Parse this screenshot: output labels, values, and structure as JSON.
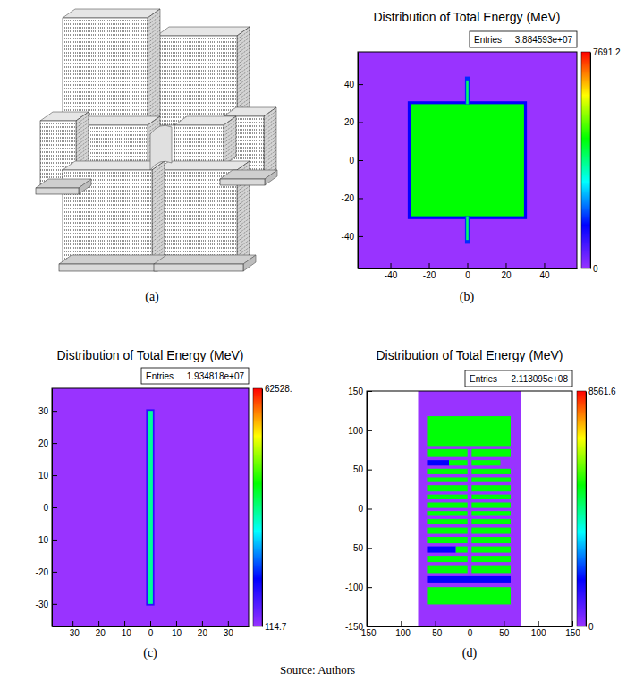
{
  "chart_data": [
    {
      "type": "diagram",
      "panel_label": "(a)"
    },
    {
      "type": "heatmap",
      "panel_label": "(b)",
      "title": "Distribution of Total Energy (MeV)",
      "entries_label": "Entries",
      "entries": "3.884593e+07",
      "xlim": [
        -57,
        57
      ],
      "ylim": [
        -57,
        57
      ],
      "xticks": [
        -40,
        -20,
        0,
        20,
        40
      ],
      "yticks": [
        -40,
        -20,
        0,
        20,
        40
      ],
      "zlim": [
        0,
        7691.2
      ],
      "zticks": [
        0,
        7691.2
      ],
      "cells": [
        {
          "x": [
            -57,
            57
          ],
          "y": [
            -57,
            57
          ],
          "value": 0
        },
        {
          "x": [
            -31,
            31
          ],
          "y": [
            -31,
            31
          ],
          "value": 1500
        },
        {
          "x": [
            -29.5,
            29.5
          ],
          "y": [
            -29.5,
            29.5
          ],
          "value": 4600
        },
        {
          "x": [
            -1.2,
            1.2
          ],
          "y": [
            29.5,
            44
          ],
          "value": 1800
        },
        {
          "x": [
            -0.6,
            0.6
          ],
          "y": [
            29.5,
            42
          ],
          "value": 4000
        },
        {
          "x": [
            -1.2,
            1.2
          ],
          "y": [
            -44,
            -29.5
          ],
          "value": 1800
        },
        {
          "x": [
            -0.6,
            0.6
          ],
          "y": [
            -42,
            -29.5
          ],
          "value": 4000
        }
      ]
    },
    {
      "type": "heatmap",
      "panel_label": "(c)",
      "title": "Distribution of Total Energy (MeV)",
      "entries_label": "Entries",
      "entries": "1.934818e+07",
      "xlim": [
        -38,
        38
      ],
      "ylim": [
        -37,
        37
      ],
      "xticks": [
        -30,
        -20,
        -10,
        0,
        10,
        20,
        30
      ],
      "yticks": [
        -30,
        -20,
        -10,
        0,
        10,
        20,
        30
      ],
      "zlim": [
        114.7,
        62528
      ],
      "zticks": [
        114.7,
        {
          "value": 62528,
          "label": "62528."
        }
      ],
      "cells": [
        {
          "x": [
            -38,
            38
          ],
          "y": [
            -37,
            37
          ],
          "value": 114.7
        },
        {
          "x": [
            -1.6,
            1.6
          ],
          "y": [
            -30.5,
            30.5
          ],
          "value": 9000
        },
        {
          "x": [
            -1,
            1
          ],
          "y": [
            -30,
            30
          ],
          "value": 30000
        }
      ]
    },
    {
      "type": "heatmap",
      "panel_label": "(d)",
      "title": "Distribution of Total Energy (MeV)",
      "entries_label": "Entries",
      "entries": "2.113095e+08",
      "xlim": [
        -150,
        150
      ],
      "ylim": [
        -150,
        150
      ],
      "xticks": [
        -150,
        -100,
        -50,
        0,
        50,
        100,
        150
      ],
      "yticks": [
        -150,
        -100,
        -50,
        0,
        50,
        100,
        150
      ],
      "zlim": [
        0,
        8561.6
      ],
      "zticks": [
        0,
        8561.6
      ],
      "cells": [
        {
          "x": [
            -75,
            75
          ],
          "y": [
            -150,
            150
          ],
          "value": 0
        },
        {
          "x": [
            -62,
            60
          ],
          "y": [
            80,
            118
          ],
          "value": 5100
        },
        {
          "x": [
            -62,
            -3
          ],
          "y": [
            66,
            76
          ],
          "value": 5100
        },
        {
          "x": [
            3,
            60
          ],
          "y": [
            66,
            76
          ],
          "value": 5100
        },
        {
          "x": [
            -62,
            -30
          ],
          "y": [
            55,
            62
          ],
          "value": 1700
        },
        {
          "x": [
            -30,
            -3
          ],
          "y": [
            55,
            62
          ],
          "value": 5100
        },
        {
          "x": [
            3,
            45
          ],
          "y": [
            55,
            62
          ],
          "value": 5100
        },
        {
          "x": [
            -62,
            -3
          ],
          "y": [
            44,
            51
          ],
          "value": 5100
        },
        {
          "x": [
            3,
            60
          ],
          "y": [
            44,
            51
          ],
          "value": 5100
        },
        {
          "x": [
            -62,
            -3
          ],
          "y": [
            34,
            40
          ],
          "value": 5100
        },
        {
          "x": [
            3,
            60
          ],
          "y": [
            34,
            40
          ],
          "value": 5100
        },
        {
          "x": [
            -62,
            -3
          ],
          "y": [
            22,
            30
          ],
          "value": 5100
        },
        {
          "x": [
            3,
            60
          ],
          "y": [
            22,
            30
          ],
          "value": 5100
        },
        {
          "x": [
            -62,
            -3
          ],
          "y": [
            12,
            18
          ],
          "value": 5100
        },
        {
          "x": [
            3,
            60
          ],
          "y": [
            12,
            18
          ],
          "value": 5100
        },
        {
          "x": [
            -62,
            -3
          ],
          "y": [
            1,
            8
          ],
          "value": 5100
        },
        {
          "x": [
            3,
            60
          ],
          "y": [
            1,
            8
          ],
          "value": 5100
        },
        {
          "x": [
            -62,
            -3
          ],
          "y": [
            -9,
            -3
          ],
          "value": 5100
        },
        {
          "x": [
            3,
            60
          ],
          "y": [
            -9,
            -3
          ],
          "value": 5100
        },
        {
          "x": [
            -62,
            -3
          ],
          "y": [
            -20,
            -13
          ],
          "value": 5100
        },
        {
          "x": [
            3,
            60
          ],
          "y": [
            -20,
            -13
          ],
          "value": 5100
        },
        {
          "x": [
            -62,
            -3
          ],
          "y": [
            -32,
            -24
          ],
          "value": 5100
        },
        {
          "x": [
            3,
            60
          ],
          "y": [
            -32,
            -24
          ],
          "value": 5100
        },
        {
          "x": [
            -62,
            -3
          ],
          "y": [
            -44,
            -36
          ],
          "value": 5100
        },
        {
          "x": [
            3,
            60
          ],
          "y": [
            -44,
            -36
          ],
          "value": 5100
        },
        {
          "x": [
            -62,
            -20
          ],
          "y": [
            -56,
            -48
          ],
          "value": 1700
        },
        {
          "x": [
            -20,
            -3
          ],
          "y": [
            -56,
            -48
          ],
          "value": 5100
        },
        {
          "x": [
            3,
            60
          ],
          "y": [
            -56,
            -48
          ],
          "value": 5100
        },
        {
          "x": [
            -62,
            -3
          ],
          "y": [
            -68,
            -60
          ],
          "value": 5100
        },
        {
          "x": [
            3,
            60
          ],
          "y": [
            -68,
            -60
          ],
          "value": 5100
        },
        {
          "x": [
            -62,
            -3
          ],
          "y": [
            -82,
            -72
          ],
          "value": 5100
        },
        {
          "x": [
            3,
            60
          ],
          "y": [
            -82,
            -72
          ],
          "value": 5100
        },
        {
          "x": [
            -62,
            60
          ],
          "y": [
            -94,
            -86
          ],
          "value": 1700
        },
        {
          "x": [
            -62,
            60
          ],
          "y": [
            -122,
            -100
          ],
          "value": 5100
        }
      ]
    }
  ],
  "caption": "Source: Authors"
}
